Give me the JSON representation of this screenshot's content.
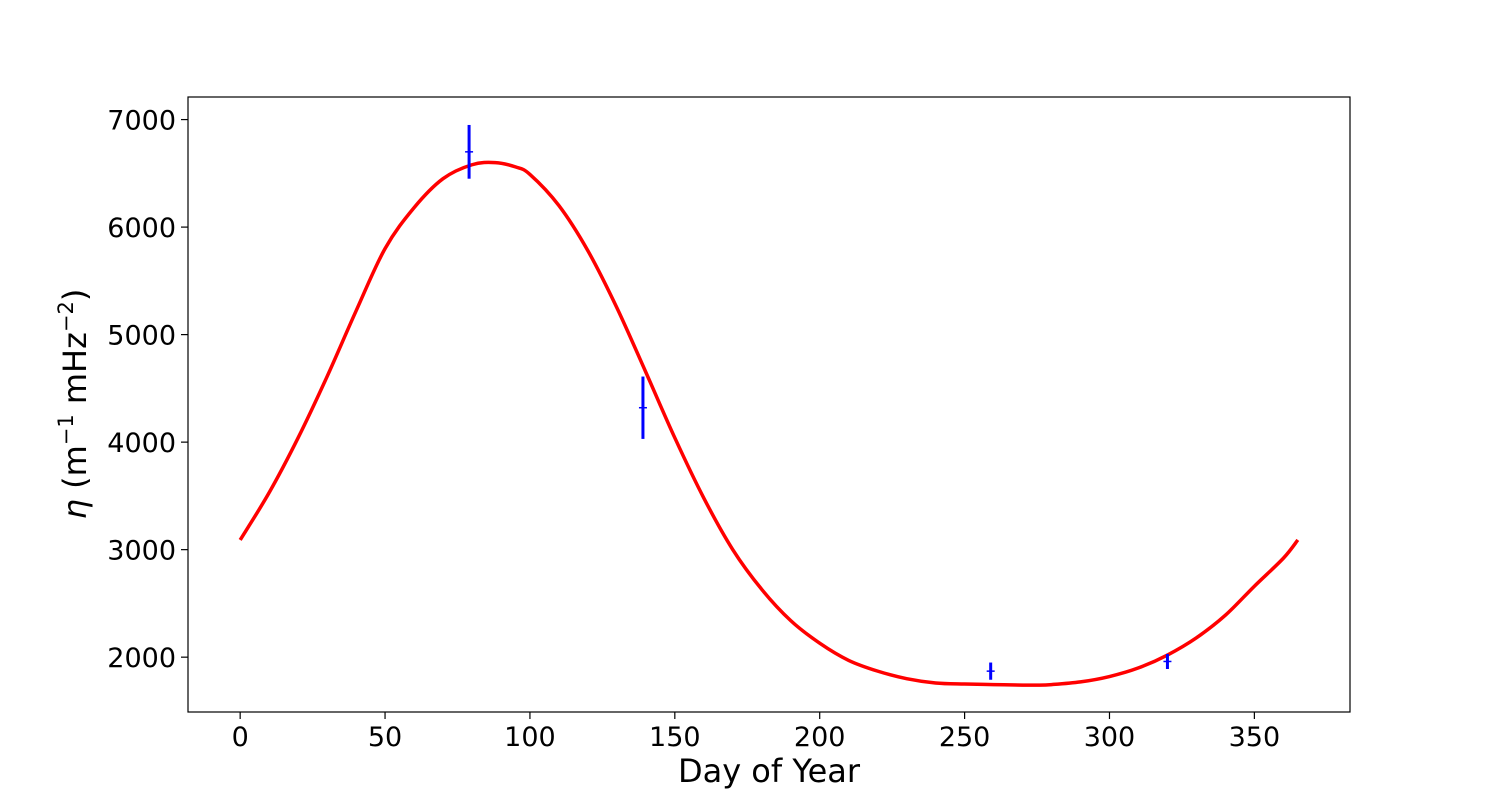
{
  "chart_data": {
    "type": "line",
    "title": "",
    "xlabel": "Day of Year",
    "ylabel": {
      "symbol": "η",
      "open": " (m",
      "exp1": "−1",
      "mid": " mHz",
      "exp2": "−2",
      "close": ")"
    },
    "xlim": [
      -18,
      383
    ],
    "ylim": [
      1490,
      7210
    ],
    "x_ticks": [
      0,
      50,
      100,
      150,
      200,
      250,
      300,
      350
    ],
    "y_ticks": [
      2000,
      3000,
      4000,
      5000,
      6000,
      7000
    ],
    "grid": false,
    "legend": "none",
    "fit_curve": {
      "color": "#ff0000",
      "x": [
        0,
        10,
        20,
        30,
        40,
        50,
        60,
        70,
        80,
        88,
        95,
        100,
        110,
        120,
        130,
        140,
        150,
        160,
        170,
        180,
        190,
        200,
        210,
        220,
        230,
        240,
        250,
        260,
        270,
        275,
        280,
        290,
        300,
        310,
        320,
        330,
        340,
        350,
        360,
        365
      ],
      "y": [
        3090,
        3530,
        4040,
        4610,
        5220,
        5800,
        6180,
        6450,
        6580,
        6600,
        6560,
        6490,
        6200,
        5780,
        5250,
        4650,
        4040,
        3480,
        3000,
        2630,
        2340,
        2130,
        1970,
        1870,
        1800,
        1760,
        1750,
        1745,
        1740,
        1740,
        1745,
        1770,
        1820,
        1900,
        2020,
        2180,
        2390,
        2660,
        2920,
        3090
      ]
    },
    "error_points": {
      "color": "#0000ff",
      "points": [
        {
          "x": 79,
          "y": 6700,
          "yerr": 250
        },
        {
          "x": 139,
          "y": 4320,
          "yerr": 290
        },
        {
          "x": 259,
          "y": 1870,
          "yerr": 80
        },
        {
          "x": 320,
          "y": 1960,
          "yerr": 70
        }
      ]
    }
  }
}
